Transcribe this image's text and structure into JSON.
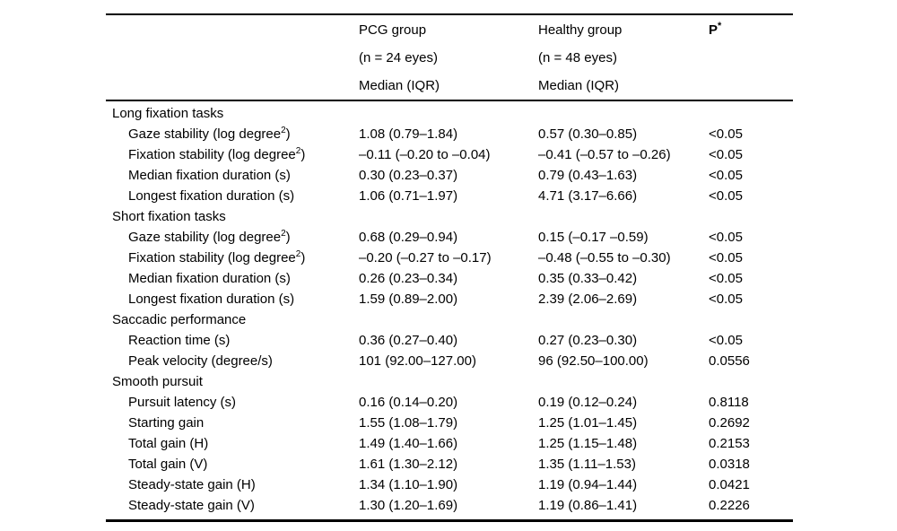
{
  "colors": {
    "background": "#ffffff",
    "text": "#000000",
    "rule": "#000000"
  },
  "table": {
    "header": {
      "pcg": [
        "PCG group",
        "(n = 24 eyes)",
        "Median (IQR)"
      ],
      "healthy": [
        "Healthy group",
        "(n = 48 eyes)",
        "Median (IQR)"
      ],
      "p_label": "P",
      "p_sup": "*"
    },
    "sections": [
      {
        "header": "Long fixation tasks",
        "rows": [
          {
            "label": "Gaze stability (log degree",
            "label_sup": "2",
            "label_tail": ")",
            "pcg": "1.08 (0.79–1.84)",
            "healthy": "0.57 (0.30–0.85)",
            "p": "<0.05"
          },
          {
            "label": "Fixation stability (log degree",
            "label_sup": "2",
            "label_tail": ")",
            "pcg": "–0.11 (–0.20 to –0.04)",
            "healthy": "–0.41 (–0.57 to –0.26)",
            "p": "<0.05"
          },
          {
            "label": "Median fixation duration (s)",
            "pcg": "0.30 (0.23–0.37)",
            "healthy": "0.79 (0.43–1.63)",
            "p": "<0.05"
          },
          {
            "label": "Longest fixation duration (s)",
            "pcg": "1.06 (0.71–1.97)",
            "healthy": "4.71 (3.17–6.66)",
            "p": "<0.05"
          }
        ]
      },
      {
        "header": "Short fixation tasks",
        "rows": [
          {
            "label": "Gaze stability (log degree",
            "label_sup": "2",
            "label_tail": ")",
            "pcg": "0.68 (0.29–0.94)",
            "healthy": "0.15 (–0.17 –0.59)",
            "p": "<0.05"
          },
          {
            "label": "Fixation stability (log degree",
            "label_sup": "2",
            "label_tail": ")",
            "pcg": "–0.20 (–0.27 to –0.17)",
            "healthy": "–0.48 (–0.55 to –0.30)",
            "p": "<0.05"
          },
          {
            "label": "Median fixation duration (s)",
            "pcg": "0.26 (0.23–0.34)",
            "healthy": "0.35 (0.33–0.42)",
            "p": "<0.05"
          },
          {
            "label": "Longest fixation duration (s)",
            "pcg": "1.59 (0.89–2.00)",
            "healthy": "2.39 (2.06–2.69)",
            "p": "<0.05"
          }
        ]
      },
      {
        "header": "Saccadic performance",
        "rows": [
          {
            "label": "Reaction time (s)",
            "pcg": "0.36 (0.27–0.40)",
            "healthy": "0.27 (0.23–0.30)",
            "p": "<0.05"
          },
          {
            "label": "Peak velocity (degree/s)",
            "pcg": "101 (92.00–127.00)",
            "healthy": "96 (92.50–100.00)",
            "p": "0.0556"
          }
        ]
      },
      {
        "header": "Smooth pursuit",
        "rows": [
          {
            "label": "Pursuit latency (s)",
            "pcg": "0.16 (0.14–0.20)",
            "healthy": "0.19 (0.12–0.24)",
            "p": "0.8118"
          },
          {
            "label": "Starting gain",
            "pcg": "1.55 (1.08–1.79)",
            "healthy": "1.25 (1.01–1.45)",
            "p": "0.2692"
          },
          {
            "label": "Total gain (H)",
            "pcg": "1.49 (1.40–1.66)",
            "healthy": "1.25 (1.15–1.48)",
            "p": "0.2153"
          },
          {
            "label": "Total gain (V)",
            "pcg": "1.61 (1.30–2.12)",
            "healthy": "1.35 (1.11–1.53)",
            "p": "0.0318"
          },
          {
            "label": "Steady-state gain (H)",
            "pcg": "1.34 (1.10–1.90)",
            "healthy": "1.19 (0.94–1.44)",
            "p": "0.0421"
          },
          {
            "label": "Steady-state gain (V)",
            "pcg": "1.30 (1.20–1.69)",
            "healthy": "1.19 (0.86–1.41)",
            "p": "0.2226"
          }
        ]
      }
    ]
  }
}
